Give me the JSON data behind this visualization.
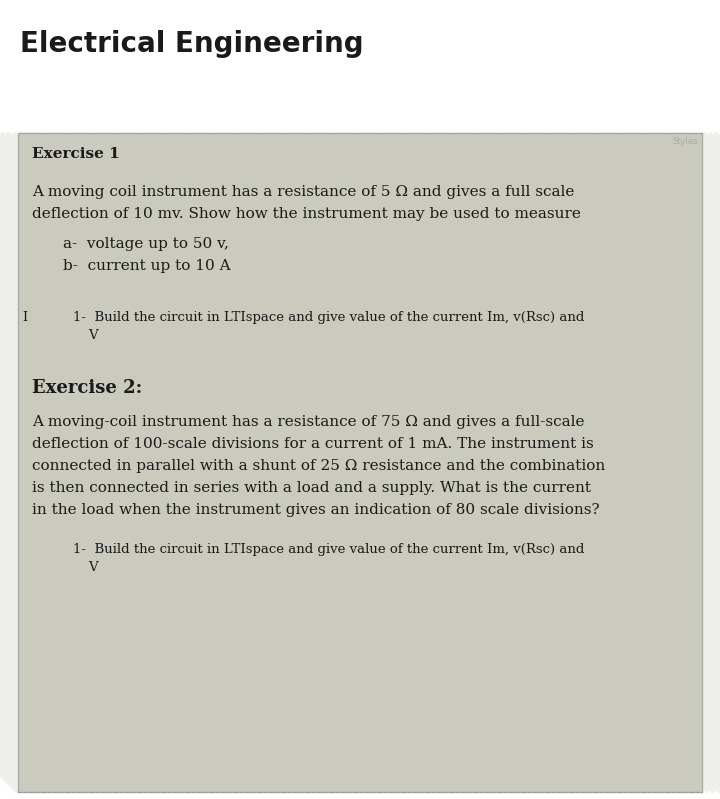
{
  "title": "Electrical Engineering",
  "title_fontsize": 20,
  "title_fontweight": "bold",
  "bg_color": "#ffffff",
  "box_bg_color": "#c8c8bc",
  "box_edge_color": "#999999",
  "stripe_color1": "#c4c4b8",
  "stripe_color2": "#d0d0c4",
  "exercise1_header": "Exercise 1",
  "exercise1_body_line1": "A moving coil instrument has a resistance of 5 Ω and gives a full scale",
  "exercise1_body_line2": "deflection of 10 mv. Show how the instrument may be used to measure",
  "exercise1_a": "a-  voltage up to 50 v,",
  "exercise1_b": "b-  current up to 10 A",
  "exercise1_q_line1": "1-  Build the circuit in LTIspace and give value of the current Im, v(Rsc) and",
  "exercise1_q_line2": "    V",
  "exercise2_header": "Exercise 2:",
  "exercise2_body_line1": "A moving-coil instrument has a resistance of 75 Ω and gives a full-scale",
  "exercise2_body_line2": "deflection of 100-scale divisions for a current of 1 mA. The instrument is",
  "exercise2_body_line3": "connected in parallel with a shunt of 25 Ω resistance and the combination",
  "exercise2_body_line4": "is then connected in series with a load and a supply. What is the current",
  "exercise2_body_line5": "in the load when the instrument gives an indication of 80 scale divisions?",
  "exercise2_q_line1": "1-  Build the circuit in LTIspace and give value of the current Im, v(Rsc) and",
  "exercise2_q_line2": "    V",
  "text_color": "#1a1a1a",
  "watermark_text": "Styles",
  "watermark_color": "#aaaaaa",
  "watermark_fontsize": 6,
  "header1_fontsize": 11,
  "header2_fontsize": 13,
  "body_fontsize": 11,
  "small_fontsize": 9.5
}
